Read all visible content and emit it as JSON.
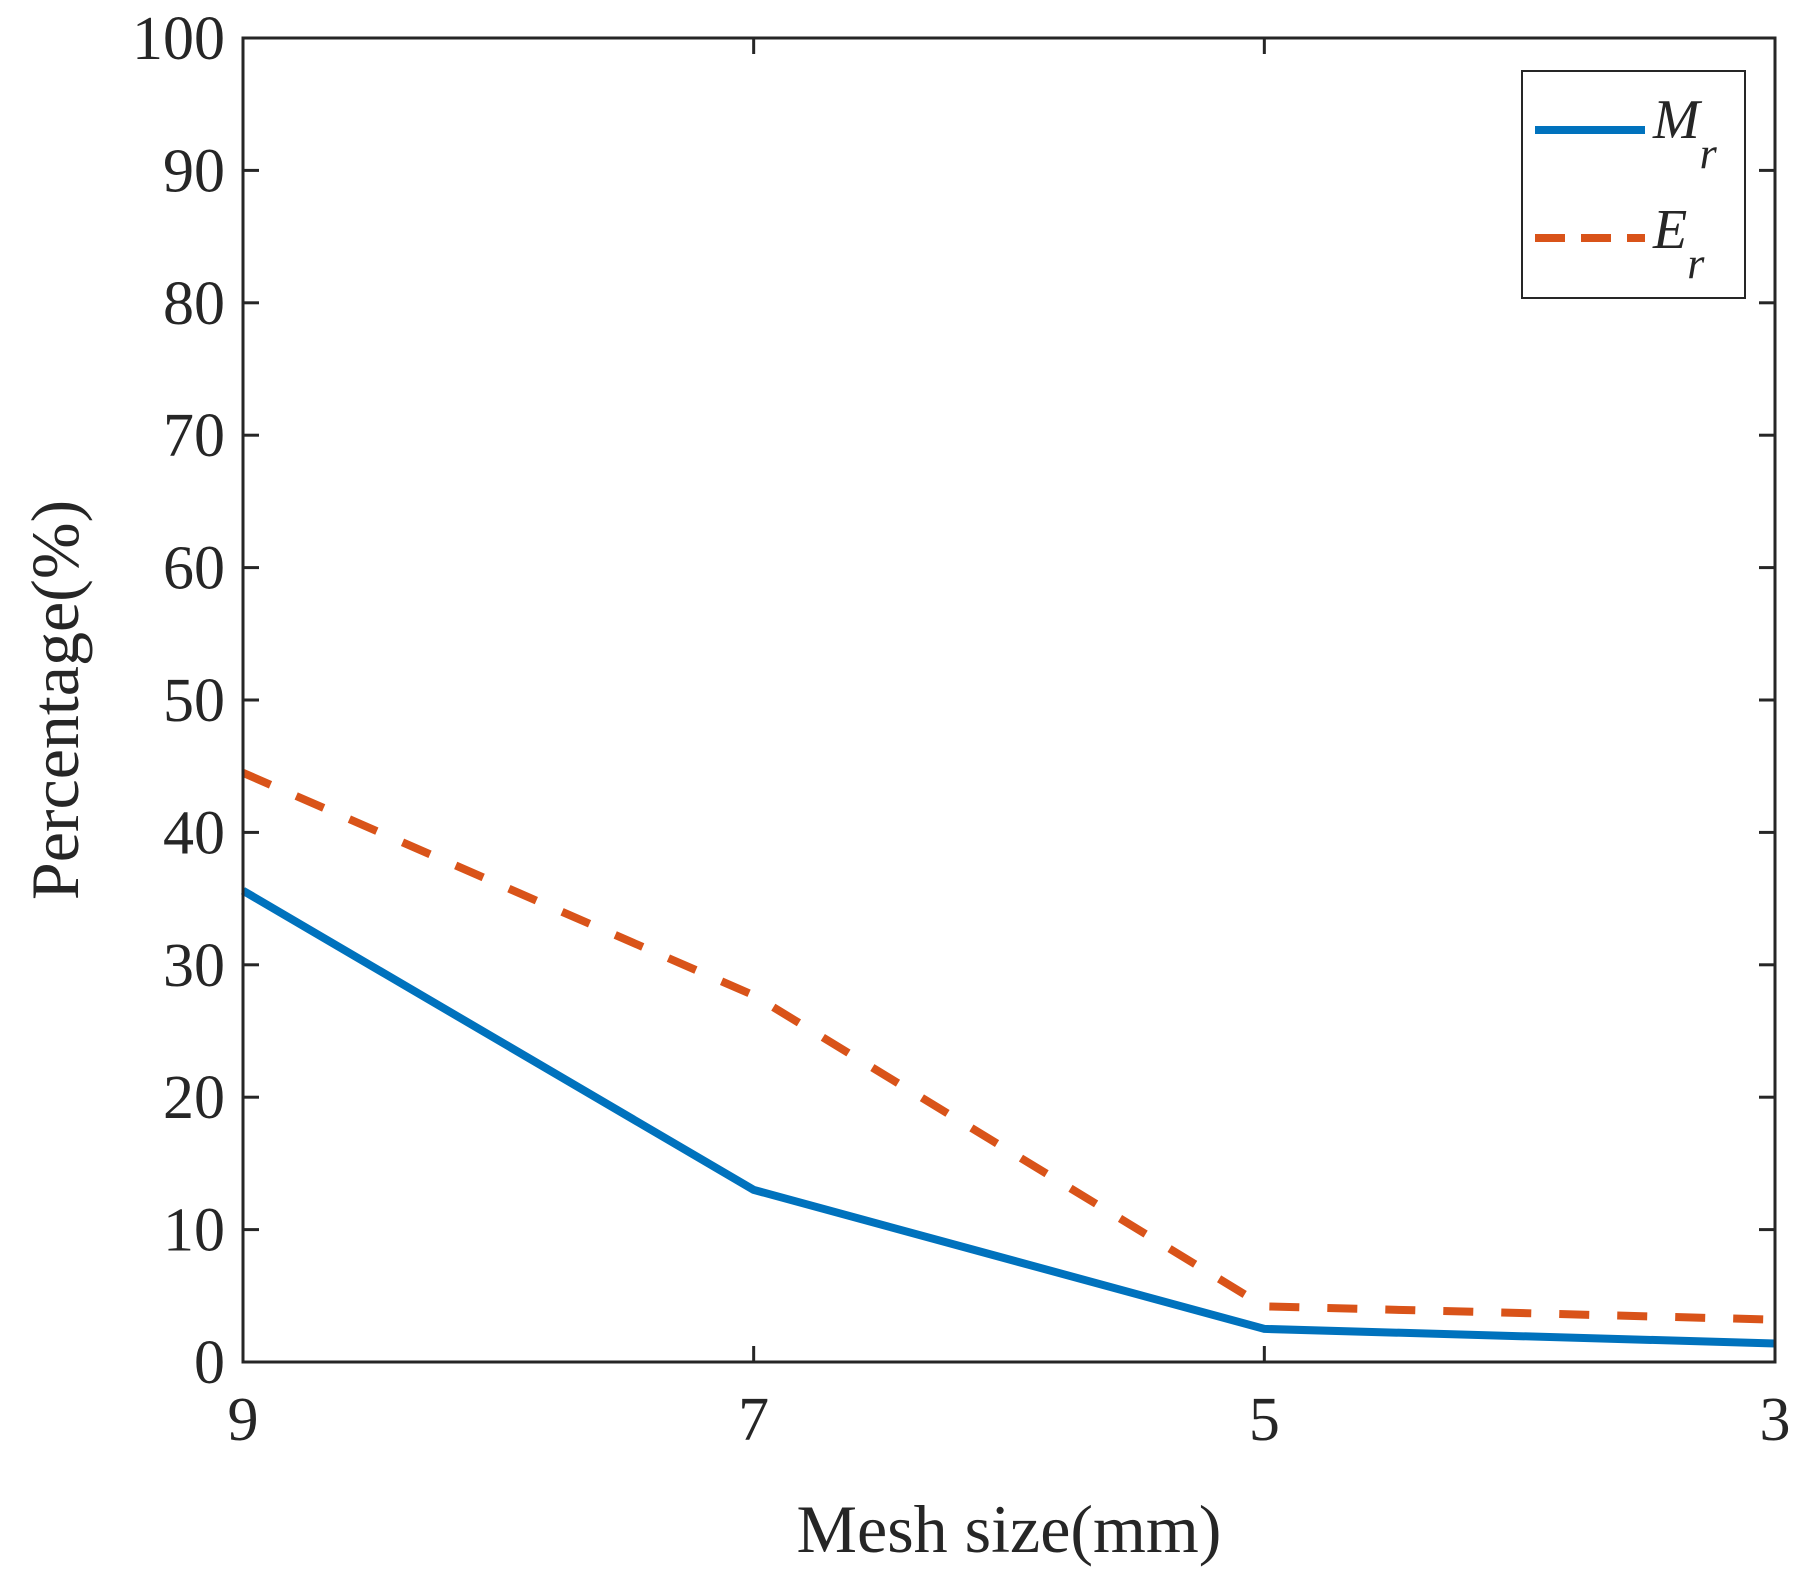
{
  "chart_data": {
    "type": "line",
    "title": "",
    "xlabel": "Mesh size(mm)",
    "ylabel": "Percentage(%)",
    "x": [
      9,
      7,
      5,
      3
    ],
    "xticks": [
      "9",
      "7",
      "5",
      "3"
    ],
    "xlim": [
      9,
      3
    ],
    "ylim": [
      0,
      100
    ],
    "yticks": [
      "0",
      "10",
      "20",
      "30",
      "40",
      "50",
      "60",
      "70",
      "80",
      "90",
      "100"
    ],
    "grid": false,
    "legend_position": "top-right",
    "series": [
      {
        "name": "M_r",
        "label_main": "M",
        "label_sub": "r",
        "style": "solid",
        "color": "#0072BD",
        "values": [
          35.6,
          13.0,
          2.5,
          1.4
        ]
      },
      {
        "name": "E_r",
        "label_main": "E",
        "label_sub": "r",
        "style": "dashed",
        "color": "#D95319",
        "values": [
          44.5,
          27.7,
          4.2,
          3.2
        ]
      }
    ]
  }
}
